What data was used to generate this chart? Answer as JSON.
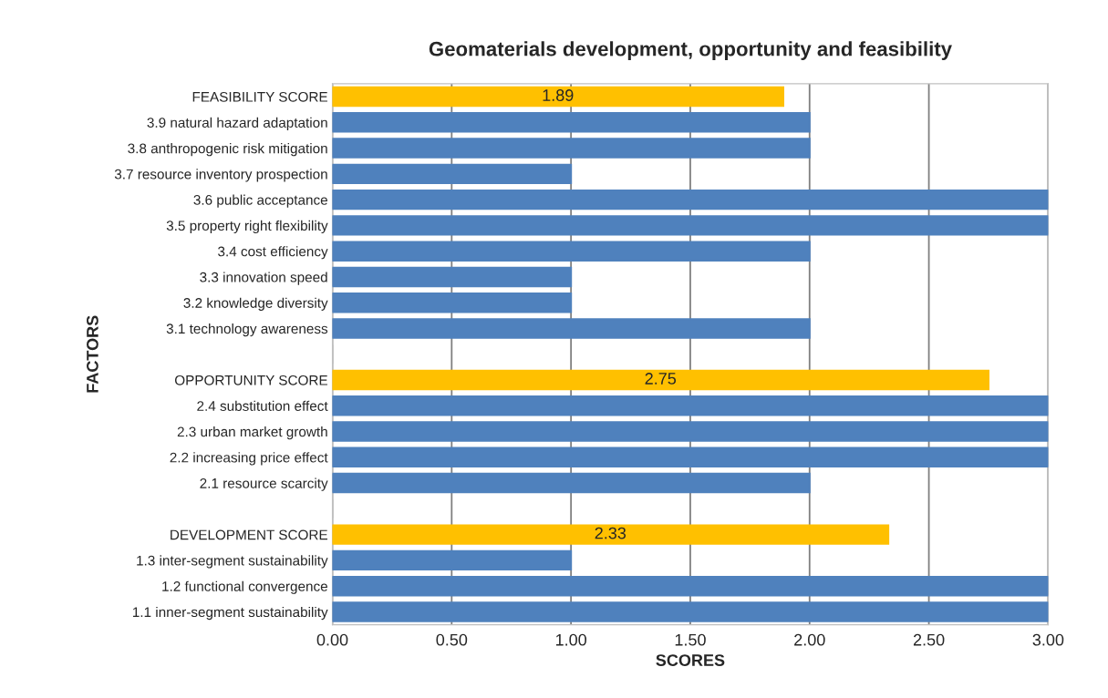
{
  "chart_data": {
    "type": "bar",
    "orientation": "horizontal",
    "title": "Geomaterials development, opportunity and feasibility",
    "xlabel": "SCORES",
    "ylabel": "FACTORS",
    "categories": [
      "FEASIBILITY SCORE",
      "3.9 natural hazard adaptation",
      "3.8 anthropogenic risk mitigation",
      "3.7 resource inventory prospection",
      "3.6 public acceptance",
      "3.5 property right flexibility",
      "3.4 cost efficiency",
      "3.3 innovation speed",
      "3.2 knowledge diversity",
      "3.1 technology awareness",
      null,
      "OPPORTUNITY SCORE",
      "2.4 substitution effect",
      "2.3 urban market growth",
      "2.2 increasing price effect",
      "2.1 resource scarcity",
      null,
      "DEVELOPMENT SCORE",
      "1.3 inter-segment sustainability",
      "1.2 functional convergence",
      "1.1 inner-segment sustainability"
    ],
    "values": [
      1.89,
      2,
      2,
      1,
      3,
      3,
      2,
      1,
      1,
      2,
      0,
      2.75,
      3,
      3,
      3,
      2,
      0,
      2.33,
      1,
      3,
      3
    ],
    "colors": [
      "#ffc000",
      "#4f81bd",
      "#4f81bd",
      "#4f81bd",
      "#4f81bd",
      "#4f81bd",
      "#4f81bd",
      "#4f81bd",
      "#4f81bd",
      "#4f81bd",
      "#bfbfbf",
      "#ffc000",
      "#4f81bd",
      "#4f81bd",
      "#4f81bd",
      "#4f81bd",
      "#bfbfbf",
      "#ffc000",
      "#4f81bd",
      "#4f81bd",
      "#4f81bd"
    ],
    "value_labels": [
      "1.89",
      null,
      null,
      null,
      null,
      null,
      null,
      null,
      null,
      null,
      null,
      "2.75",
      null,
      null,
      null,
      null,
      null,
      "2.33",
      null,
      null,
      null
    ],
    "xlim": [
      0,
      3
    ],
    "xticks": [
      {
        "value": 0,
        "label": "0.00"
      },
      {
        "value": 0.5,
        "label": "0.50"
      },
      {
        "value": 1,
        "label": "1.00"
      },
      {
        "value": 1.5,
        "label": "1.50"
      },
      {
        "value": 2,
        "label": "2.00"
      },
      {
        "value": 2.5,
        "label": "2.50"
      },
      {
        "value": 3,
        "label": "3.00"
      }
    ],
    "grid": "x"
  }
}
